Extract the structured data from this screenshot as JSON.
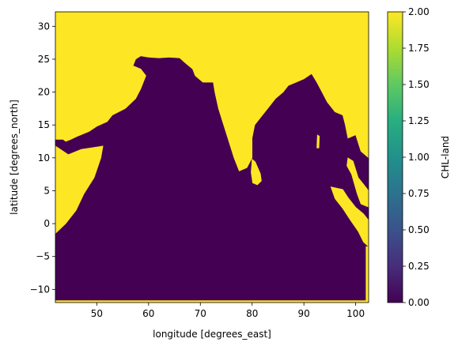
{
  "chart_data": {
    "type": "heatmap",
    "xlabel": "longitude [degrees_east]",
    "ylabel": "latitude [degrees_north]",
    "colorbar_label": "CHL-land",
    "xlim": [
      42,
      102.5
    ],
    "ylim": [
      -12,
      32.2
    ],
    "xticks": [
      "50",
      "60",
      "70",
      "80",
      "90",
      "100"
    ],
    "xtick_values": [
      50,
      60,
      70,
      80,
      90,
      100
    ],
    "yticks": [
      "−10",
      "−5",
      "0",
      "5",
      "10",
      "15",
      "20",
      "25",
      "30"
    ],
    "ytick_values": [
      -10,
      -5,
      0,
      5,
      10,
      15,
      20,
      25,
      30
    ],
    "clim": [
      0,
      2
    ],
    "cbar_ticks": [
      "0.00",
      "0.25",
      "0.50",
      "0.75",
      "1.00",
      "1.25",
      "1.50",
      "1.75",
      "2.00"
    ],
    "cbar_tick_values": [
      0,
      0.25,
      0.5,
      0.75,
      1.0,
      1.25,
      1.5,
      1.75,
      2.0
    ],
    "colormap": "viridis",
    "land_value": 2,
    "ocean_value": 0,
    "colors": {
      "land": "#fde725",
      "ocean": "#440154"
    },
    "land_polygons": [
      {
        "name": "north-landmass",
        "points": [
          [
            42,
            32.2
          ],
          [
            102.5,
            32.2
          ],
          [
            102.5,
            10
          ],
          [
            101,
            11
          ],
          [
            100,
            13.5
          ],
          [
            98.5,
            13
          ],
          [
            98,
            15
          ],
          [
            97.5,
            16.5
          ],
          [
            96,
            17
          ],
          [
            94.5,
            18.5
          ],
          [
            93.5,
            20
          ],
          [
            92.5,
            21.5
          ],
          [
            91.5,
            22.8
          ],
          [
            90,
            22
          ],
          [
            88.5,
            21.5
          ],
          [
            87,
            21
          ],
          [
            86,
            20
          ],
          [
            84.5,
            19
          ],
          [
            83,
            17.5
          ],
          [
            82,
            16.5
          ],
          [
            80.5,
            15
          ],
          [
            80,
            13
          ],
          [
            80,
            10
          ],
          [
            79,
            8.5
          ],
          [
            77.5,
            8
          ],
          [
            76.5,
            10
          ],
          [
            75.5,
            12.5
          ],
          [
            74.5,
            15
          ],
          [
            73.5,
            17.5
          ],
          [
            72.8,
            20
          ],
          [
            72.5,
            21.5
          ],
          [
            70.5,
            21.5
          ],
          [
            69,
            22.5
          ],
          [
            68.5,
            23.5
          ],
          [
            67,
            24.5
          ],
          [
            66,
            25.2
          ],
          [
            64,
            25.3
          ],
          [
            62,
            25.2
          ],
          [
            60,
            25.3
          ],
          [
            58.5,
            25.5
          ],
          [
            57.5,
            25
          ],
          [
            57,
            24
          ],
          [
            58.5,
            23.5
          ],
          [
            59.5,
            22.5
          ],
          [
            58.5,
            20.5
          ],
          [
            57.5,
            19
          ],
          [
            55.5,
            17.5
          ],
          [
            53,
            16.5
          ],
          [
            52,
            15.5
          ],
          [
            50,
            14.8
          ],
          [
            48.5,
            14
          ],
          [
            46,
            13.2
          ],
          [
            45,
            12.8
          ],
          [
            44,
            12.5
          ],
          [
            43.5,
            12.8
          ],
          [
            42,
            12.8
          ]
        ]
      },
      {
        "name": "persian-gulf",
        "points": [
          [
            48,
            30
          ],
          [
            49.2,
            30.3
          ],
          [
            50.5,
            29
          ],
          [
            51.5,
            27.5
          ],
          [
            53.5,
            26.7
          ],
          [
            56,
            26.8
          ],
          [
            56.5,
            25.5
          ],
          [
            55.5,
            24.8
          ],
          [
            53.5,
            24.2
          ],
          [
            51.8,
            24.2
          ],
          [
            51.5,
            25.6
          ],
          [
            50.5,
            25.2
          ],
          [
            49.5,
            26.6
          ],
          [
            48.5,
            28.5
          ]
        ]
      },
      {
        "name": "africa-horn",
        "points": [
          [
            42,
            11.8
          ],
          [
            44.5,
            10.5
          ],
          [
            47,
            11.3
          ],
          [
            49.5,
            11.6
          ],
          [
            51.2,
            11.8
          ],
          [
            50.8,
            10
          ],
          [
            49.5,
            7
          ],
          [
            47.5,
            4.5
          ],
          [
            46,
            2
          ],
          [
            44,
            0
          ],
          [
            42,
            -1.5
          ]
        ]
      },
      {
        "name": "sri-lanka",
        "points": [
          [
            80,
            9.8
          ],
          [
            80.6,
            9.4
          ],
          [
            81.6,
            7.6
          ],
          [
            81.8,
            6.5
          ],
          [
            81,
            5.9
          ],
          [
            80.1,
            6.2
          ],
          [
            79.8,
            7.8
          ]
        ]
      },
      {
        "name": "sumatra",
        "points": [
          [
            95.2,
            5.6
          ],
          [
            97.5,
            5.2
          ],
          [
            98.5,
            4
          ],
          [
            100,
            2.5
          ],
          [
            101.5,
            1.5
          ],
          [
            102.5,
            0.5
          ],
          [
            102.5,
            -3.5
          ],
          [
            101.5,
            -2.8
          ],
          [
            100.5,
            -1.2
          ],
          [
            99,
            0.5
          ],
          [
            97.5,
            2.3
          ],
          [
            96,
            3.8
          ]
        ]
      },
      {
        "name": "malay-peninsula",
        "points": [
          [
            98.5,
            10
          ],
          [
            99.5,
            9.5
          ],
          [
            100.5,
            7
          ],
          [
            101.5,
            6
          ],
          [
            102.5,
            5
          ],
          [
            102.5,
            2.5
          ],
          [
            101,
            3
          ],
          [
            100.3,
            4.5
          ],
          [
            99.2,
            7.5
          ],
          [
            98.3,
            8.8
          ]
        ]
      },
      {
        "name": "andaman-islands",
        "points": [
          [
            92.6,
            13.5
          ],
          [
            93,
            13.3
          ],
          [
            92.9,
            11.5
          ],
          [
            92.5,
            11.5
          ]
        ]
      },
      {
        "name": "south-border",
        "points": [
          [
            42,
            -12
          ],
          [
            102.5,
            -12
          ],
          [
            102.5,
            -11.7
          ],
          [
            42,
            -11.7
          ]
        ]
      },
      {
        "name": "east-border",
        "points": [
          [
            102,
            -11.7
          ],
          [
            102.5,
            -11.7
          ],
          [
            102.5,
            -3.5
          ],
          [
            102,
            -3.5
          ]
        ]
      }
    ]
  }
}
